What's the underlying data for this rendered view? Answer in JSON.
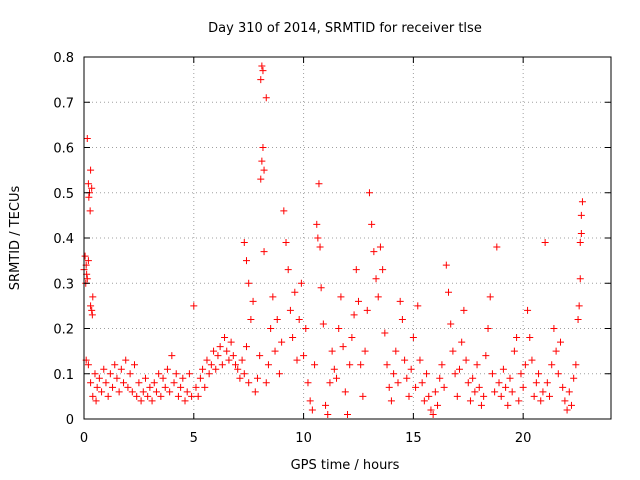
{
  "chart_data": {
    "type": "scatter",
    "title": "Day 310 of 2014, SRMTID for receiver tlse",
    "xlabel": "GPS time / hours",
    "ylabel": "SRMTID / TECUs",
    "xlim": [
      0,
      24
    ],
    "ylim": [
      0,
      0.8
    ],
    "xticks": [
      0,
      5,
      10,
      15,
      20
    ],
    "yticks": [
      0,
      0.1,
      0.2,
      0.3,
      0.4,
      0.5,
      0.6,
      0.7,
      0.8
    ],
    "xtick_labels": [
      "0",
      "5",
      "10",
      "15",
      "20"
    ],
    "ytick_labels": [
      "0",
      "0.1",
      "0.2",
      "0.3",
      "0.4",
      "0.5",
      "0.6",
      "0.7",
      "0.8"
    ],
    "grid": true,
    "marker": "+",
    "color": "#ff0000",
    "series": [
      {
        "name": "SRMTID",
        "points": [
          [
            0.0,
            0.33
          ],
          [
            0.05,
            0.36
          ],
          [
            0.1,
            0.34
          ],
          [
            0.15,
            0.31
          ],
          [
            0.2,
            0.35
          ],
          [
            0.08,
            0.3
          ],
          [
            0.12,
            0.32
          ],
          [
            0.15,
            0.62
          ],
          [
            0.2,
            0.52
          ],
          [
            0.25,
            0.5
          ],
          [
            0.3,
            0.55
          ],
          [
            0.35,
            0.51
          ],
          [
            0.28,
            0.46
          ],
          [
            0.22,
            0.49
          ],
          [
            0.3,
            0.25
          ],
          [
            0.35,
            0.24
          ],
          [
            0.4,
            0.27
          ],
          [
            0.38,
            0.23
          ],
          [
            0.1,
            0.13
          ],
          [
            0.2,
            0.12
          ],
          [
            0.3,
            0.08
          ],
          [
            0.4,
            0.05
          ],
          [
            0.5,
            0.1
          ],
          [
            0.55,
            0.04
          ],
          [
            0.6,
            0.07
          ],
          [
            0.7,
            0.09
          ],
          [
            0.8,
            0.06
          ],
          [
            0.9,
            0.11
          ],
          [
            1.0,
            0.08
          ],
          [
            1.1,
            0.05
          ],
          [
            1.2,
            0.1
          ],
          [
            1.3,
            0.07
          ],
          [
            1.4,
            0.12
          ],
          [
            1.5,
            0.09
          ],
          [
            1.6,
            0.06
          ],
          [
            1.7,
            0.11
          ],
          [
            1.8,
            0.08
          ],
          [
            1.9,
            0.13
          ],
          [
            2.0,
            0.07
          ],
          [
            2.1,
            0.1
          ],
          [
            2.2,
            0.06
          ],
          [
            2.3,
            0.12
          ],
          [
            2.4,
            0.05
          ],
          [
            2.5,
            0.08
          ],
          [
            2.6,
            0.04
          ],
          [
            2.7,
            0.06
          ],
          [
            2.8,
            0.09
          ],
          [
            2.9,
            0.05
          ],
          [
            3.0,
            0.07
          ],
          [
            3.1,
            0.04
          ],
          [
            3.2,
            0.08
          ],
          [
            3.3,
            0.06
          ],
          [
            3.4,
            0.1
          ],
          [
            3.5,
            0.05
          ],
          [
            3.6,
            0.09
          ],
          [
            3.7,
            0.07
          ],
          [
            3.8,
            0.11
          ],
          [
            3.9,
            0.06
          ],
          [
            4.0,
            0.14
          ],
          [
            4.1,
            0.08
          ],
          [
            4.2,
            0.1
          ],
          [
            4.3,
            0.05
          ],
          [
            4.4,
            0.07
          ],
          [
            4.5,
            0.09
          ],
          [
            4.6,
            0.04
          ],
          [
            4.7,
            0.06
          ],
          [
            4.8,
            0.1
          ],
          [
            4.9,
            0.05
          ],
          [
            5.0,
            0.25
          ],
          [
            5.1,
            0.07
          ],
          [
            5.2,
            0.05
          ],
          [
            5.3,
            0.09
          ],
          [
            5.4,
            0.11
          ],
          [
            5.5,
            0.07
          ],
          [
            5.6,
            0.13
          ],
          [
            5.7,
            0.1
          ],
          [
            5.8,
            0.12
          ],
          [
            5.9,
            0.15
          ],
          [
            6.0,
            0.11
          ],
          [
            6.1,
            0.14
          ],
          [
            6.2,
            0.16
          ],
          [
            6.3,
            0.12
          ],
          [
            6.4,
            0.18
          ],
          [
            6.5,
            0.15
          ],
          [
            6.6,
            0.13
          ],
          [
            6.7,
            0.17
          ],
          [
            6.8,
            0.14
          ],
          [
            6.9,
            0.12
          ],
          [
            7.0,
            0.11
          ],
          [
            7.1,
            0.09
          ],
          [
            7.2,
            0.13
          ],
          [
            7.3,
            0.1
          ],
          [
            7.4,
            0.16
          ],
          [
            7.5,
            0.08
          ],
          [
            7.3,
            0.39
          ],
          [
            7.4,
            0.35
          ],
          [
            7.5,
            0.3
          ],
          [
            7.6,
            0.22
          ],
          [
            7.7,
            0.26
          ],
          [
            7.8,
            0.06
          ],
          [
            7.9,
            0.09
          ],
          [
            8.0,
            0.14
          ],
          [
            8.05,
            0.53
          ],
          [
            8.1,
            0.57
          ],
          [
            8.15,
            0.6
          ],
          [
            8.2,
            0.55
          ],
          [
            8.1,
            0.78
          ],
          [
            8.15,
            0.77
          ],
          [
            8.05,
            0.75
          ],
          [
            8.3,
            0.71
          ],
          [
            8.2,
            0.37
          ],
          [
            8.3,
            0.08
          ],
          [
            8.4,
            0.12
          ],
          [
            8.5,
            0.2
          ],
          [
            8.6,
            0.27
          ],
          [
            8.7,
            0.15
          ],
          [
            8.8,
            0.22
          ],
          [
            8.9,
            0.1
          ],
          [
            9.0,
            0.17
          ],
          [
            9.1,
            0.46
          ],
          [
            9.2,
            0.39
          ],
          [
            9.3,
            0.33
          ],
          [
            9.4,
            0.24
          ],
          [
            9.5,
            0.18
          ],
          [
            9.6,
            0.28
          ],
          [
            9.7,
            0.13
          ],
          [
            9.8,
            0.22
          ],
          [
            9.9,
            0.3
          ],
          [
            10.0,
            0.14
          ],
          [
            10.1,
            0.2
          ],
          [
            10.2,
            0.08
          ],
          [
            10.3,
            0.04
          ],
          [
            10.4,
            0.02
          ],
          [
            10.5,
            0.12
          ],
          [
            10.6,
            0.43
          ],
          [
            10.7,
            0.52
          ],
          [
            10.65,
            0.4
          ],
          [
            10.75,
            0.38
          ],
          [
            10.8,
            0.29
          ],
          [
            10.9,
            0.21
          ],
          [
            11.0,
            0.03
          ],
          [
            11.1,
            0.01
          ],
          [
            11.2,
            0.08
          ],
          [
            11.3,
            0.15
          ],
          [
            11.4,
            0.11
          ],
          [
            11.5,
            0.09
          ],
          [
            11.6,
            0.2
          ],
          [
            11.7,
            0.27
          ],
          [
            11.8,
            0.16
          ],
          [
            11.9,
            0.06
          ],
          [
            12.0,
            0.01
          ],
          [
            12.1,
            0.12
          ],
          [
            12.2,
            0.18
          ],
          [
            12.3,
            0.23
          ],
          [
            12.4,
            0.33
          ],
          [
            12.5,
            0.26
          ],
          [
            12.6,
            0.12
          ],
          [
            12.7,
            0.05
          ],
          [
            12.8,
            0.15
          ],
          [
            12.9,
            0.24
          ],
          [
            13.0,
            0.5
          ],
          [
            13.1,
            0.43
          ],
          [
            13.2,
            0.37
          ],
          [
            13.3,
            0.31
          ],
          [
            13.4,
            0.27
          ],
          [
            13.5,
            0.38
          ],
          [
            13.6,
            0.33
          ],
          [
            13.7,
            0.19
          ],
          [
            13.8,
            0.12
          ],
          [
            13.9,
            0.07
          ],
          [
            14.0,
            0.04
          ],
          [
            14.1,
            0.1
          ],
          [
            14.2,
            0.15
          ],
          [
            14.3,
            0.08
          ],
          [
            14.4,
            0.26
          ],
          [
            14.5,
            0.22
          ],
          [
            14.6,
            0.13
          ],
          [
            14.7,
            0.09
          ],
          [
            14.8,
            0.05
          ],
          [
            14.9,
            0.11
          ],
          [
            15.0,
            0.18
          ],
          [
            15.1,
            0.07
          ],
          [
            15.2,
            0.25
          ],
          [
            15.3,
            0.13
          ],
          [
            15.4,
            0.08
          ],
          [
            15.5,
            0.04
          ],
          [
            15.6,
            0.1
          ],
          [
            15.7,
            0.05
          ],
          [
            15.8,
            0.02
          ],
          [
            15.9,
            0.01
          ],
          [
            16.0,
            0.06
          ],
          [
            16.1,
            0.03
          ],
          [
            16.2,
            0.09
          ],
          [
            16.3,
            0.12
          ],
          [
            16.4,
            0.07
          ],
          [
            16.5,
            0.34
          ],
          [
            16.6,
            0.28
          ],
          [
            16.7,
            0.21
          ],
          [
            16.8,
            0.15
          ],
          [
            16.9,
            0.1
          ],
          [
            17.0,
            0.05
          ],
          [
            17.1,
            0.11
          ],
          [
            17.2,
            0.17
          ],
          [
            17.3,
            0.24
          ],
          [
            17.4,
            0.13
          ],
          [
            17.5,
            0.08
          ],
          [
            17.6,
            0.04
          ],
          [
            17.7,
            0.09
          ],
          [
            17.8,
            0.06
          ],
          [
            17.9,
            0.12
          ],
          [
            18.0,
            0.07
          ],
          [
            18.1,
            0.03
          ],
          [
            18.2,
            0.05
          ],
          [
            18.3,
            0.14
          ],
          [
            18.4,
            0.2
          ],
          [
            18.5,
            0.27
          ],
          [
            18.6,
            0.1
          ],
          [
            18.7,
            0.06
          ],
          [
            18.8,
            0.38
          ],
          [
            18.9,
            0.08
          ],
          [
            19.0,
            0.05
          ],
          [
            19.1,
            0.11
          ],
          [
            19.2,
            0.07
          ],
          [
            19.3,
            0.03
          ],
          [
            19.4,
            0.09
          ],
          [
            19.5,
            0.06
          ],
          [
            19.6,
            0.15
          ],
          [
            19.7,
            0.18
          ],
          [
            19.8,
            0.04
          ],
          [
            19.9,
            0.1
          ],
          [
            20.0,
            0.07
          ],
          [
            20.1,
            0.12
          ],
          [
            20.2,
            0.24
          ],
          [
            20.3,
            0.18
          ],
          [
            20.4,
            0.13
          ],
          [
            20.5,
            0.05
          ],
          [
            20.6,
            0.08
          ],
          [
            20.7,
            0.1
          ],
          [
            20.8,
            0.04
          ],
          [
            20.9,
            0.06
          ],
          [
            21.0,
            0.39
          ],
          [
            21.1,
            0.08
          ],
          [
            21.2,
            0.05
          ],
          [
            21.3,
            0.12
          ],
          [
            21.4,
            0.2
          ],
          [
            21.5,
            0.15
          ],
          [
            21.6,
            0.1
          ],
          [
            21.7,
            0.17
          ],
          [
            21.8,
            0.07
          ],
          [
            21.9,
            0.04
          ],
          [
            22.0,
            0.02
          ],
          [
            22.1,
            0.06
          ],
          [
            22.2,
            0.03
          ],
          [
            22.3,
            0.09
          ],
          [
            22.4,
            0.12
          ],
          [
            22.5,
            0.22
          ],
          [
            22.55,
            0.25
          ],
          [
            22.6,
            0.31
          ],
          [
            22.6,
            0.39
          ],
          [
            22.65,
            0.41
          ],
          [
            22.7,
            0.48
          ],
          [
            22.65,
            0.45
          ]
        ]
      }
    ]
  }
}
